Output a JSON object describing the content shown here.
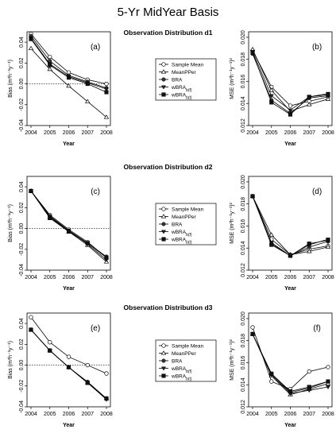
{
  "figure": {
    "title": "5-Yr MidYear Basis"
  },
  "legend": {
    "entries": [
      {
        "label": "Sample Mean",
        "sub": "",
        "marker": "open-circle"
      },
      {
        "label": "MeanPPer",
        "sub": "",
        "marker": "open-triangle"
      },
      {
        "label": "BRA",
        "sub": "",
        "marker": "filled-circle"
      },
      {
        "label": "wBRA",
        "sub": "b(f)",
        "marker": "filled-down-triangle"
      },
      {
        "label": "wBRA",
        "sub": "b(t)",
        "marker": "filled-square"
      }
    ]
  },
  "chart_data": [
    {
      "type": "line",
      "row": 0,
      "col": "left",
      "row_title": "Observation Distribution d1",
      "panel_label": "(a)",
      "x": [
        2004,
        2005,
        2006,
        2007,
        2008
      ],
      "xlabel": "Year",
      "ylabel": "Bias",
      "ylabel_units": "(m³h⁻¹y⁻¹)",
      "ylim": [
        -0.04,
        0.05
      ],
      "yticks": [
        -0.04,
        -0.02,
        0.0,
        0.02,
        0.04
      ],
      "ytick_labels": [
        "-0.04",
        "-0.02",
        "0.00",
        "0.02",
        "0.04"
      ],
      "reference_line": 0,
      "series": [
        {
          "name": "Sample Mean",
          "values": [
            0.048,
            0.026,
            0.011,
            0.004,
            0.0
          ]
        },
        {
          "name": "MeanPPer",
          "values": [
            0.034,
            0.014,
            -0.002,
            -0.017,
            -0.032
          ]
        },
        {
          "name": "BRA",
          "values": [
            0.046,
            0.022,
            0.008,
            0.002,
            -0.004
          ]
        },
        {
          "name": "wBRA b(f)",
          "values": [
            0.044,
            0.019,
            0.007,
            0.001,
            -0.005
          ]
        },
        {
          "name": "wBRA b(t)",
          "values": [
            0.043,
            0.018,
            0.006,
            0.0,
            -0.008
          ]
        }
      ]
    },
    {
      "type": "line",
      "row": 0,
      "col": "right",
      "panel_label": "(b)",
      "x": [
        2004,
        2005,
        2006,
        2007,
        2008
      ],
      "xlabel": "Year",
      "ylabel": "MSE",
      "ylabel_units": "(m³h⁻¹y⁻¹)²",
      "ylim": [
        0.012,
        0.0205
      ],
      "yticks": [
        0.012,
        0.014,
        0.016,
        0.018,
        0.02
      ],
      "ytick_labels": [
        "0.012",
        "0.014",
        "0.016",
        "0.018",
        "0.020"
      ],
      "series": [
        {
          "name": "Sample Mean",
          "values": [
            0.0188,
            0.0155,
            0.0138,
            0.0142,
            0.0146
          ]
        },
        {
          "name": "MeanPPer",
          "values": [
            0.0189,
            0.0152,
            0.0133,
            0.0139,
            0.0144
          ]
        },
        {
          "name": "BRA",
          "values": [
            0.0185,
            0.0143,
            0.0131,
            0.0145,
            0.0147
          ]
        },
        {
          "name": "wBRA b(f)",
          "values": [
            0.0187,
            0.0147,
            0.0134,
            0.0146,
            0.0149
          ]
        },
        {
          "name": "wBRA b(t)",
          "values": [
            0.0186,
            0.0141,
            0.013,
            0.0146,
            0.0148
          ]
        }
      ]
    },
    {
      "type": "line",
      "row": 1,
      "col": "left",
      "row_title": "Observation Distribution d2",
      "panel_label": "(c)",
      "x": [
        2004,
        2005,
        2006,
        2007,
        2008
      ],
      "xlabel": "Year",
      "ylabel": "Bias",
      "ylabel_units": "(m³h⁻¹y⁻¹)",
      "ylim": [
        -0.04,
        0.05
      ],
      "yticks": [
        -0.04,
        -0.02,
        0.0,
        0.02,
        0.04
      ],
      "ytick_labels": [
        "-0.04",
        "-0.02",
        "0.00",
        "0.02",
        "0.04"
      ],
      "reference_line": 0,
      "series": [
        {
          "name": "Sample Mean",
          "values": [
            0.036,
            0.013,
            -0.001,
            -0.013,
            -0.028
          ]
        },
        {
          "name": "MeanPPer",
          "values": [
            0.036,
            0.011,
            -0.003,
            -0.016,
            -0.032
          ]
        },
        {
          "name": "BRA",
          "values": [
            0.036,
            0.012,
            -0.002,
            -0.014,
            -0.027
          ]
        },
        {
          "name": "wBRA b(f)",
          "values": [
            0.036,
            0.011,
            -0.002,
            -0.015,
            -0.03
          ]
        },
        {
          "name": "wBRA b(t)",
          "values": [
            0.036,
            0.01,
            -0.003,
            -0.014,
            -0.028
          ]
        }
      ]
    },
    {
      "type": "line",
      "row": 1,
      "col": "right",
      "panel_label": "(d)",
      "x": [
        2004,
        2005,
        2006,
        2007,
        2008
      ],
      "xlabel": "Year",
      "ylabel": "MSE",
      "ylabel_units": "(m³h⁻¹y⁻¹)²",
      "ylim": [
        0.012,
        0.0205
      ],
      "yticks": [
        0.012,
        0.014,
        0.016,
        0.018,
        0.02
      ],
      "ytick_labels": [
        "0.012",
        "0.014",
        "0.016",
        "0.018",
        "0.020"
      ],
      "series": [
        {
          "name": "Sample Mean",
          "values": [
            0.0187,
            0.0148,
            0.0134,
            0.0139,
            0.0142
          ]
        },
        {
          "name": "MeanPPer",
          "values": [
            0.0187,
            0.0152,
            0.0134,
            0.0137,
            0.0141
          ]
        },
        {
          "name": "BRA",
          "values": [
            0.0187,
            0.0144,
            0.0133,
            0.0141,
            0.0146
          ]
        },
        {
          "name": "wBRA b(f)",
          "values": [
            0.0187,
            0.0145,
            0.0133,
            0.0143,
            0.0148
          ]
        },
        {
          "name": "wBRA b(t)",
          "values": [
            0.0187,
            0.0143,
            0.0133,
            0.0144,
            0.0147
          ]
        }
      ]
    },
    {
      "type": "line",
      "row": 2,
      "col": "left",
      "row_title": "Observation Distribution d3",
      "panel_label": "(e)",
      "x": [
        2004,
        2005,
        2006,
        2007,
        2008
      ],
      "xlabel": "Year",
      "ylabel": "Bias",
      "ylabel_units": "(m³h⁻¹y⁻¹)",
      "ylim": [
        -0.04,
        0.05
      ],
      "yticks": [
        -0.04,
        -0.02,
        0.0,
        0.02,
        0.04
      ],
      "ytick_labels": [
        "-0.04",
        "-0.02",
        "0.00",
        "0.02",
        "0.04"
      ],
      "reference_line": 0,
      "series": [
        {
          "name": "Sample Mean",
          "values": [
            0.046,
            0.022,
            0.008,
            0.0,
            -0.008
          ]
        },
        {
          "name": "MeanPPer",
          "values": [
            0.034,
            0.014,
            -0.002,
            -0.017,
            -0.032
          ]
        },
        {
          "name": "BRA",
          "values": [
            0.034,
            0.014,
            -0.002,
            -0.016,
            -0.032
          ]
        },
        {
          "name": "wBRA b(f)",
          "values": [
            0.034,
            0.014,
            -0.002,
            -0.017,
            -0.033
          ]
        },
        {
          "name": "wBRA b(t)",
          "values": [
            0.034,
            0.014,
            -0.002,
            -0.017,
            -0.032
          ]
        }
      ]
    },
    {
      "type": "line",
      "row": 2,
      "col": "right",
      "panel_label": "(f)",
      "x": [
        2004,
        2005,
        2006,
        2007,
        2008
      ],
      "xlabel": "Year",
      "ylabel": "MSE",
      "ylabel_units": "(m³h⁻¹y⁻¹)²",
      "ylim": [
        0.012,
        0.0205
      ],
      "yticks": [
        0.012,
        0.014,
        0.016,
        0.018,
        0.02
      ],
      "ytick_labels": [
        "0.012",
        "0.014",
        "0.016",
        "0.018",
        "0.020"
      ],
      "series": [
        {
          "name": "Sample Mean",
          "values": [
            0.0192,
            0.0143,
            0.0136,
            0.0152,
            0.0156
          ]
        },
        {
          "name": "MeanPPer",
          "values": [
            0.0186,
            0.0148,
            0.0131,
            0.0136,
            0.0141
          ]
        },
        {
          "name": "BRA",
          "values": [
            0.0186,
            0.015,
            0.0133,
            0.0137,
            0.0143
          ]
        },
        {
          "name": "wBRA b(f)",
          "values": [
            0.0186,
            0.0149,
            0.0132,
            0.0135,
            0.0138
          ]
        },
        {
          "name": "wBRA b(t)",
          "values": [
            0.0186,
            0.015,
            0.0134,
            0.0138,
            0.0143
          ]
        }
      ]
    }
  ]
}
